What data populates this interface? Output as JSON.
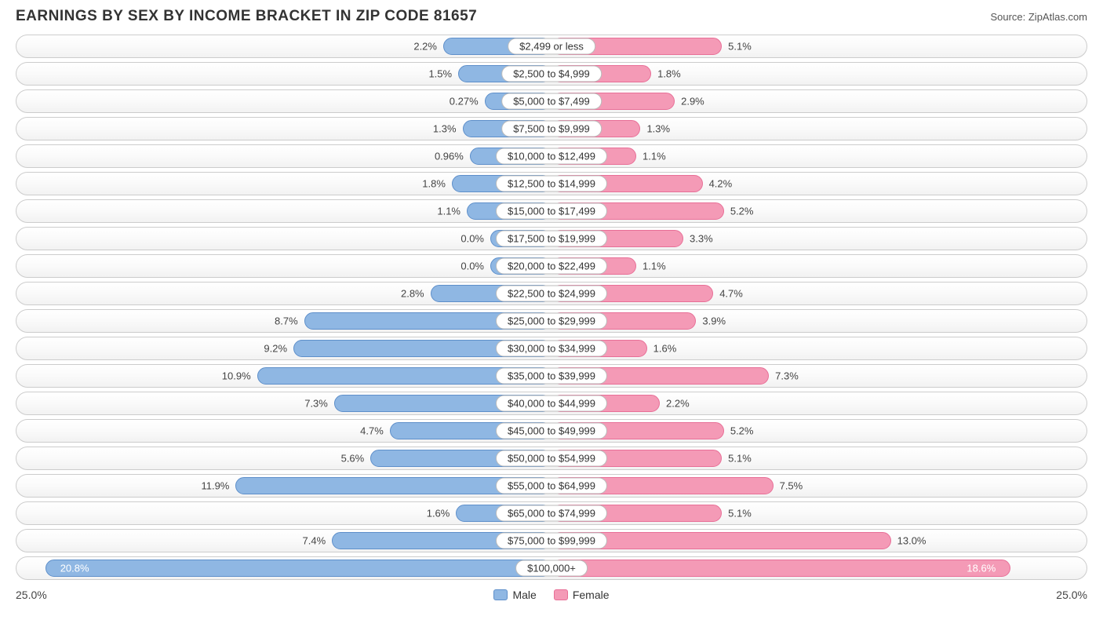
{
  "title": "EARNINGS BY SEX BY INCOME BRACKET IN ZIP CODE 81657",
  "source": "Source: ZipAtlas.com",
  "axis_max_pct": 25.0,
  "axis_left_label": "25.0%",
  "axis_right_label": "25.0%",
  "legend": {
    "male": "Male",
    "female": "Female"
  },
  "colors": {
    "male_fill": "#8fb7e3",
    "male_border": "#5e8fca",
    "female_fill": "#f49ab6",
    "female_border": "#e86f97",
    "track_border": "#cccccc",
    "label_pill_bg": "#ffffff",
    "label_pill_border": "#bbbbbb",
    "text": "#333333"
  },
  "rows": [
    {
      "category": "$2,499 or less",
      "male_pct": 2.2,
      "male_label": "2.2%",
      "female_pct": 5.1,
      "female_label": "5.1%"
    },
    {
      "category": "$2,500 to $4,999",
      "male_pct": 1.5,
      "male_label": "1.5%",
      "female_pct": 1.8,
      "female_label": "1.8%"
    },
    {
      "category": "$5,000 to $7,499",
      "male_pct": 0.27,
      "male_label": "0.27%",
      "female_pct": 2.9,
      "female_label": "2.9%"
    },
    {
      "category": "$7,500 to $9,999",
      "male_pct": 1.3,
      "male_label": "1.3%",
      "female_pct": 1.3,
      "female_label": "1.3%"
    },
    {
      "category": "$10,000 to $12,499",
      "male_pct": 0.96,
      "male_label": "0.96%",
      "female_pct": 1.1,
      "female_label": "1.1%"
    },
    {
      "category": "$12,500 to $14,999",
      "male_pct": 1.8,
      "male_label": "1.8%",
      "female_pct": 4.2,
      "female_label": "4.2%"
    },
    {
      "category": "$15,000 to $17,499",
      "male_pct": 1.1,
      "male_label": "1.1%",
      "female_pct": 5.2,
      "female_label": "5.2%"
    },
    {
      "category": "$17,500 to $19,999",
      "male_pct": 0.0,
      "male_label": "0.0%",
      "female_pct": 3.3,
      "female_label": "3.3%"
    },
    {
      "category": "$20,000 to $22,499",
      "male_pct": 0.0,
      "male_label": "0.0%",
      "female_pct": 1.1,
      "female_label": "1.1%"
    },
    {
      "category": "$22,500 to $24,999",
      "male_pct": 2.8,
      "male_label": "2.8%",
      "female_pct": 4.7,
      "female_label": "4.7%"
    },
    {
      "category": "$25,000 to $29,999",
      "male_pct": 8.7,
      "male_label": "8.7%",
      "female_pct": 3.9,
      "female_label": "3.9%"
    },
    {
      "category": "$30,000 to $34,999",
      "male_pct": 9.2,
      "male_label": "9.2%",
      "female_pct": 1.6,
      "female_label": "1.6%"
    },
    {
      "category": "$35,000 to $39,999",
      "male_pct": 10.9,
      "male_label": "10.9%",
      "female_pct": 7.3,
      "female_label": "7.3%"
    },
    {
      "category": "$40,000 to $44,999",
      "male_pct": 7.3,
      "male_label": "7.3%",
      "female_pct": 2.2,
      "female_label": "2.2%"
    },
    {
      "category": "$45,000 to $49,999",
      "male_pct": 4.7,
      "male_label": "4.7%",
      "female_pct": 5.2,
      "female_label": "5.2%"
    },
    {
      "category": "$50,000 to $54,999",
      "male_pct": 5.6,
      "male_label": "5.6%",
      "female_pct": 5.1,
      "female_label": "5.1%"
    },
    {
      "category": "$55,000 to $64,999",
      "male_pct": 11.9,
      "male_label": "11.9%",
      "female_pct": 7.5,
      "female_label": "7.5%"
    },
    {
      "category": "$65,000 to $74,999",
      "male_pct": 1.6,
      "male_label": "1.6%",
      "female_pct": 5.1,
      "female_label": "5.1%"
    },
    {
      "category": "$75,000 to $99,999",
      "male_pct": 7.4,
      "male_label": "7.4%",
      "female_pct": 13.0,
      "female_label": "13.0%"
    },
    {
      "category": "$100,000+",
      "male_pct": 20.8,
      "male_label": "20.8%",
      "female_pct": 18.6,
      "female_label": "18.6%"
    }
  ]
}
